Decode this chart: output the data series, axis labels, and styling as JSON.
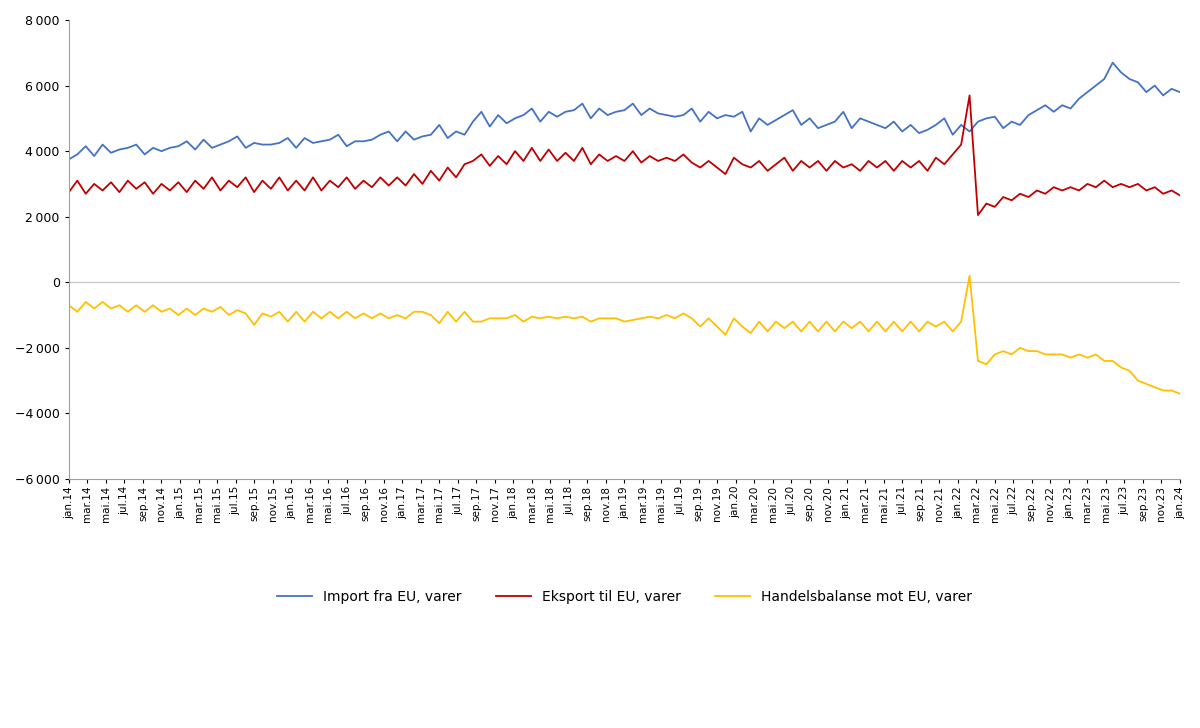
{
  "legend_labels": [
    "Import fra EU, varer",
    "Eksport til EU, varer",
    "Handelsbalanse mot EU, varer"
  ],
  "line_colors": [
    "#4472C4",
    "#C00000",
    "#FFC000"
  ],
  "ylim": [
    -6000,
    8000
  ],
  "yticks": [
    -6000,
    -4000,
    -2000,
    0,
    2000,
    4000,
    6000,
    8000
  ],
  "background_color": "#FFFFFF",
  "zero_line_color": "#C8C8C8",
  "import_values": [
    3750,
    3900,
    4150,
    3850,
    4200,
    3950,
    4050,
    4100,
    4200,
    3900,
    4100,
    4000,
    4100,
    4150,
    4300,
    4050,
    4350,
    4100,
    4200,
    4300,
    4450,
    4100,
    4250,
    4200,
    4200,
    4250,
    4400,
    4100,
    4400,
    4250,
    4300,
    4350,
    4500,
    4150,
    4300,
    4300,
    4350,
    4500,
    4600,
    4300,
    4600,
    4350,
    4450,
    4500,
    4800,
    4400,
    4600,
    4500,
    4900,
    5200,
    4750,
    5100,
    4850,
    5000,
    5100,
    5300,
    4900,
    5200,
    5050,
    5200,
    5250,
    5450,
    5000,
    5300,
    5100,
    5200,
    5250,
    5450,
    5100,
    5300,
    5150,
    5100,
    5050,
    5100,
    5300,
    4900,
    5200,
    5000,
    5100,
    5050,
    5200,
    4600,
    5000,
    4800,
    4950,
    5100,
    5250,
    4800,
    5000,
    4700,
    4800,
    4900,
    5200,
    4700,
    5000,
    4900,
    4800,
    4700,
    4900,
    4600,
    4800,
    4550,
    4650,
    4800,
    5000,
    4500,
    4800,
    4600,
    4900,
    5000,
    5050,
    4700,
    4900,
    4800,
    5100,
    5250,
    5400,
    5200,
    5400,
    5300,
    5600,
    5800,
    6000,
    6200,
    6700,
    6400,
    6200,
    6100,
    5800,
    6000,
    5700,
    5900,
    5800
  ],
  "export_values": [
    2750,
    3100,
    2700,
    3000,
    2800,
    3050,
    2750,
    3100,
    2850,
    3050,
    2700,
    3000,
    2800,
    3050,
    2750,
    3100,
    2850,
    3200,
    2800,
    3100,
    2900,
    3200,
    2750,
    3100,
    2850,
    3200,
    2800,
    3100,
    2800,
    3200,
    2800,
    3100,
    2900,
    3200,
    2850,
    3100,
    2900,
    3200,
    2950,
    3200,
    2950,
    3300,
    3000,
    3400,
    3100,
    3500,
    3200,
    3600,
    3700,
    3900,
    3550,
    3850,
    3600,
    4000,
    3700,
    4100,
    3700,
    4050,
    3700,
    3950,
    3700,
    4100,
    3600,
    3900,
    3700,
    3850,
    3700,
    4000,
    3650,
    3850,
    3700,
    3800,
    3700,
    3900,
    3650,
    3500,
    3700,
    3500,
    3300,
    3800,
    3600,
    3500,
    3700,
    3400,
    3600,
    3800,
    3400,
    3700,
    3500,
    3700,
    3400,
    3700,
    3500,
    3600,
    3400,
    3700,
    3500,
    3700,
    3400,
    3700,
    3500,
    3700,
    3400,
    3800,
    3600,
    3900,
    4200,
    5700,
    2050,
    2400,
    2300,
    2600,
    2500,
    2700,
    2600,
    2800,
    2700,
    2900,
    2800,
    2900,
    2800,
    3000,
    2900,
    3100,
    2900,
    3000,
    2900,
    3000,
    2800,
    2900,
    2700,
    2800,
    2650
  ],
  "balance_values": [
    -700,
    -900,
    -600,
    -800,
    -600,
    -800,
    -700,
    -900,
    -700,
    -900,
    -700,
    -900,
    -800,
    -1000,
    -800,
    -1000,
    -800,
    -900,
    -750,
    -1000,
    -850,
    -950,
    -1300,
    -950,
    -1050,
    -900,
    -1200,
    -900,
    -1200,
    -900,
    -1100,
    -900,
    -1100,
    -900,
    -1100,
    -950,
    -1100,
    -950,
    -1100,
    -1000,
    -1100,
    -900,
    -900,
    -1000,
    -1250,
    -900,
    -1200,
    -900,
    -1200,
    -1200,
    -1100,
    -1100,
    -1100,
    -1000,
    -1200,
    -1050,
    -1100,
    -1050,
    -1100,
    -1050,
    -1100,
    -1050,
    -1200,
    -1100,
    -1100,
    -1100,
    -1200,
    -1150,
    -1100,
    -1050,
    -1100,
    -1000,
    -1100,
    -950,
    -1100,
    -1350,
    -1100,
    -1350,
    -1600,
    -1100,
    -1350,
    -1550,
    -1200,
    -1500,
    -1200,
    -1400,
    -1200,
    -1500,
    -1200,
    -1500,
    -1200,
    -1500,
    -1200,
    -1400,
    -1200,
    -1500,
    -1200,
    -1500,
    -1200,
    -1500,
    -1200,
    -1500,
    -1200,
    -1350,
    -1200,
    -1500,
    -1200,
    200,
    -2400,
    -2500,
    -2200,
    -2100,
    -2200,
    -2000,
    -2100,
    -2100,
    -2200,
    -2200,
    -2200,
    -2300,
    -2200,
    -2300,
    -2200,
    -2400,
    -2400,
    -2600,
    -2700,
    -3000,
    -3100,
    -3200,
    -3300,
    -3300,
    -3400
  ],
  "x_tick_labels": [
    "jan.14",
    "mar.14",
    "mai.14",
    "jul.14",
    "sep.14",
    "nov.14",
    "jan.15",
    "mar.15",
    "mai.15",
    "jul.15",
    "sep.15",
    "nov.15",
    "jan.16",
    "mar.16",
    "mai.16",
    "jul.16",
    "sep.16",
    "nov.16",
    "jan.17",
    "mar.17",
    "mai.17",
    "jul.17",
    "sep.17",
    "nov.17",
    "jan.18",
    "mar.18",
    "mai.18",
    "jul.18",
    "sep.18",
    "nov.18",
    "jan.19",
    "mar.19",
    "mai.19",
    "jul.19",
    "sep.19",
    "nov.19",
    "jan.20",
    "mar.20",
    "mai.20",
    "jul.20",
    "sep.20",
    "nov.20",
    "jan.21",
    "mar.21",
    "mai.21",
    "jul.21",
    "sep.21",
    "nov.21",
    "jan.22",
    "mar.22",
    "mai.22",
    "jul.22",
    "sep.22",
    "nov.22",
    "jan.23",
    "mar.23",
    "mai.23",
    "jul.23",
    "sep.23",
    "nov.23",
    "jan.24"
  ]
}
